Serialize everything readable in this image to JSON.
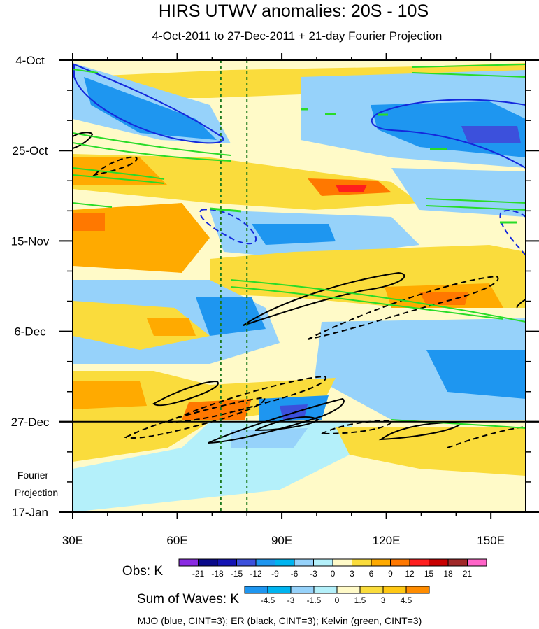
{
  "chart_data": {
    "type": "heatmap",
    "title": "HIRS UTWV anomalies: 20S - 10S",
    "subtitle": "4-Oct-2011 to 27-Dec-2011 + 21-day Fourier Projection",
    "x_axis": {
      "range": [
        30,
        160
      ],
      "ticks": [
        30,
        60,
        90,
        120,
        150
      ],
      "tick_labels": [
        "30E",
        "60E",
        "90E",
        "120E",
        "150E"
      ]
    },
    "y_axis": {
      "range_days": [
        0,
        105
      ],
      "ticks": [
        0,
        21,
        42,
        63,
        84,
        105
      ],
      "tick_labels": [
        "4-Oct",
        "25-Oct",
        "15-Nov",
        "6-Dec",
        "27-Dec",
        "17-Jan"
      ],
      "inverted": true
    },
    "observation_end_day": 84,
    "projection_label_line1": "Fourier",
    "projection_label_line2": "Projection",
    "reference_longitudes": [
      72.5,
      80
    ],
    "obs_colorbar": {
      "label": "Obs: K",
      "levels": [
        -21,
        -18,
        -15,
        -12,
        -9,
        -6,
        -3,
        0,
        3,
        6,
        9,
        12,
        15,
        18,
        21
      ],
      "colors": [
        "#8a2be2",
        "#0a0a8a",
        "#1414b4",
        "#3c50dc",
        "#1e96f0",
        "#00b4f0",
        "#96d2fa",
        "#b4f0fa",
        "#fffac8",
        "#fadc3c",
        "#ffaa00",
        "#ff7800",
        "#ff1e1e",
        "#c80000",
        "#a02828",
        "#ff64c8"
      ]
    },
    "waves_colorbar": {
      "label": "Sum of Waves: K",
      "levels": [
        -4.5,
        -3,
        -1.5,
        0,
        1.5,
        3,
        4.5
      ],
      "colors": [
        "#1e96f0",
        "#00b4f0",
        "#96d2fa",
        "#b4f0fa",
        "#fffac8",
        "#fadc3c",
        "#ffc814",
        "#ff8c00"
      ]
    },
    "wave_colors": {
      "mjo": "#1428dc",
      "er": "#000000",
      "kelvin": "#28dc28"
    },
    "series_note": "MJO (blue, CINT=3); ER (black, CINT=3); Kelvin (green, CINT=3)"
  }
}
